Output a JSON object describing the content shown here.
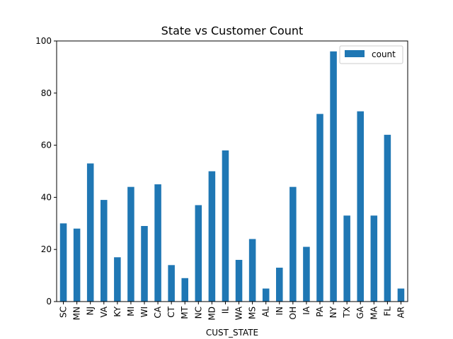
{
  "chart_data": {
    "type": "bar",
    "title": "State vs Customer Count",
    "xlabel": "CUST_STATE",
    "ylabel": "",
    "ylim": [
      0,
      100
    ],
    "yticks": [
      0,
      20,
      40,
      60,
      80,
      100
    ],
    "grid": false,
    "legend_position": "top-right",
    "categories": [
      "SC",
      "MN",
      "NJ",
      "VA",
      "KY",
      "MI",
      "WI",
      "CA",
      "CT",
      "MT",
      "NC",
      "MD",
      "IL",
      "WA",
      "MS",
      "AL",
      "IN",
      "OH",
      "IA",
      "PA",
      "NY",
      "TX",
      "GA",
      "MA",
      "FL",
      "AR"
    ],
    "series": [
      {
        "name": "count",
        "color": "#1f77b4",
        "values": [
          30,
          28,
          53,
          39,
          17,
          44,
          29,
          45,
          14,
          9,
          37,
          50,
          58,
          16,
          24,
          5,
          13,
          44,
          21,
          72,
          96,
          33,
          73,
          33,
          64,
          5
        ]
      }
    ]
  }
}
